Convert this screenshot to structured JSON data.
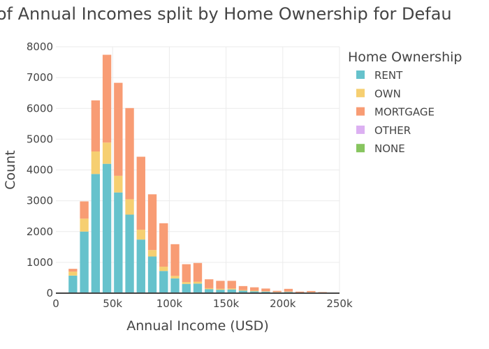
{
  "chart_data": {
    "type": "bar",
    "stacked": true,
    "title": "n of Annual Incomes split by Home Ownership for Defau",
    "xlabel": "Annual Income (USD)",
    "ylabel": "Count",
    "xlim": [
      0,
      250000
    ],
    "ylim": [
      0,
      8000
    ],
    "bin_width": 10000,
    "x_ticks": [
      0,
      50000,
      100000,
      150000,
      200000,
      250000
    ],
    "x_tick_labels": [
      "0",
      "50k",
      "100k",
      "150k",
      "200k",
      "250k"
    ],
    "y_ticks": [
      0,
      1000,
      2000,
      3000,
      4000,
      5000,
      6000,
      7000,
      8000
    ],
    "y_tick_labels": [
      "0",
      "1000",
      "2000",
      "3000",
      "4000",
      "5000",
      "6000",
      "7000",
      "8000"
    ],
    "grid": true,
    "legend_placement": "top-right",
    "legend_title": "Home Ownership",
    "bin_centers": [
      0,
      15000,
      25000,
      35000,
      45000,
      55000,
      65000,
      75000,
      85000,
      95000,
      105000,
      115000,
      125000,
      135000,
      145000,
      155000,
      165000,
      175000,
      185000,
      195000,
      205000,
      215000,
      225000,
      235000,
      245000
    ],
    "series": [
      {
        "name": "RENT",
        "color": "#66C2CC",
        "values": [
          10,
          570,
          2000,
          3870,
          4200,
          3270,
          2550,
          1740,
          1190,
          720,
          480,
          300,
          310,
          130,
          110,
          120,
          80,
          60,
          50,
          30,
          40,
          15,
          25,
          10,
          8
        ]
      },
      {
        "name": "OWN",
        "color": "#F6CF71",
        "values": [
          0,
          130,
          420,
          730,
          690,
          540,
          500,
          320,
          210,
          140,
          80,
          60,
          60,
          30,
          30,
          30,
          20,
          20,
          10,
          5,
          10,
          5,
          5,
          5,
          2
        ]
      },
      {
        "name": "MORTGAGE",
        "color": "#F89C74",
        "values": [
          0,
          90,
          560,
          1660,
          2850,
          3020,
          2960,
          2370,
          1810,
          1410,
          1030,
          580,
          610,
          290,
          260,
          250,
          130,
          110,
          90,
          40,
          90,
          30,
          40,
          20,
          12
        ]
      },
      {
        "name": "OTHER",
        "color": "#DCB0F2",
        "values": []
      },
      {
        "name": "NONE",
        "color": "#87C55F",
        "values": []
      }
    ]
  }
}
